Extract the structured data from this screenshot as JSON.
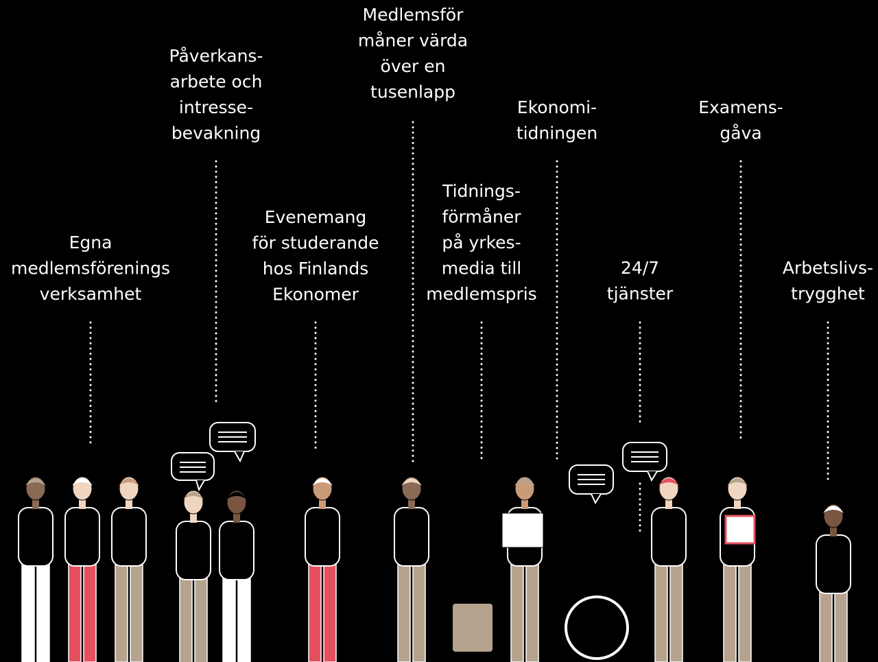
{
  "labels": [
    {
      "lines": [
        "Egna",
        "medlemsförenings",
        "verksamhet"
      ]
    },
    {
      "lines": [
        "Påverkans-",
        "arbete och",
        "intresse-",
        "bevakning"
      ]
    },
    {
      "lines": [
        "Evenemang",
        "för studerande",
        "hos Finlands",
        "Ekonomer"
      ]
    },
    {
      "lines": [
        "Medlemsför",
        "måner värda",
        "över en",
        "tusenlapp"
      ]
    },
    {
      "lines": [
        "Tidnings-",
        "förmåner",
        "på yrkes-",
        "media till",
        "medlemspris"
      ]
    },
    {
      "lines": [
        "Ekonomi-",
        "tidningen"
      ]
    },
    {
      "lines": [
        "24/7",
        "tjänster"
      ]
    },
    {
      "lines": [
        "Examens-",
        "gåva"
      ]
    },
    {
      "lines": [
        "Arbetslivs-",
        "trygghet"
      ]
    }
  ]
}
